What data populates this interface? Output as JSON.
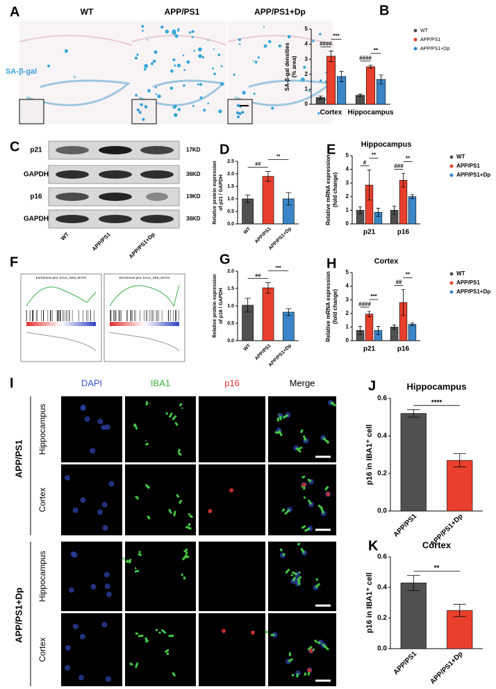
{
  "figure": {
    "panel_labels": [
      "A",
      "B",
      "C",
      "D",
      "E",
      "F",
      "G",
      "H",
      "I",
      "J",
      "K"
    ],
    "panel_a": {
      "columns": [
        "WT",
        "APP/PS1",
        "APP/PS1+Dp"
      ],
      "stain": "SA-β-gal"
    },
    "panel_c": {
      "rows": [
        "p21",
        "GAPDH",
        "p16",
        "GAPDH"
      ],
      "sizes": [
        "17KD",
        "36KD",
        "19KD",
        "36KD"
      ],
      "lanes": [
        "WT",
        "APP/PS1",
        "APP/PS1+Dp"
      ]
    },
    "panel_f": {
      "plot_titles": [
        "Enrichment plot: SAUL_SEN_MAYO",
        "Enrichment plot: SAUL_SEN_MAYO"
      ]
    },
    "panel_i": {
      "columns": [
        "DAPI",
        "IBA1",
        "p16",
        "Merge"
      ],
      "groups": [
        {
          "name": "APP/PS1",
          "rows": [
            "Hippocampus",
            "Cortex"
          ]
        },
        {
          "name": "APP/PS1+Dp",
          "rows": [
            "Hippocampus",
            "Cortex"
          ]
        }
      ]
    }
  },
  "chart_data": [
    {
      "type": "bar",
      "y_label": [
        "SA-β-gal densities",
        "(% area)"
      ],
      "categories": [
        "Cortex",
        "Hippocampus"
      ],
      "series": [
        {
          "name": "WT",
          "color": "#505050",
          "values": [
            0.45,
            0.6
          ],
          "errors": [
            0.1,
            0.08
          ]
        },
        {
          "name": "APP/PS1",
          "color": "#e8402c",
          "values": [
            3.2,
            2.5
          ],
          "errors": [
            0.35,
            0.1
          ]
        },
        {
          "name": "APP/PS1+Dp",
          "color": "#3b86c8",
          "values": [
            1.85,
            1.65
          ],
          "errors": [
            0.35,
            0.3
          ]
        }
      ],
      "ylim": [
        0,
        5
      ],
      "yticks": [
        0,
        1,
        2,
        3,
        4,
        5
      ],
      "annotations": [
        "####",
        "***",
        "####",
        "**"
      ]
    },
    {
      "type": "bar",
      "y_label": [
        "Relative protein expression",
        "of p21 / GAPDH"
      ],
      "categories": [
        "WT",
        "APP/PS1",
        "APP/PS1+Dp"
      ],
      "values": [
        1.0,
        1.9,
        1.0
      ],
      "errors": [
        0.15,
        0.2,
        0.25
      ],
      "colors": [
        "#505050",
        "#e8402c",
        "#3b86c8"
      ],
      "ylim": [
        0,
        2.5
      ],
      "yticks": [
        {
          "value": 0,
          "label": "0.0"
        },
        0.5,
        {
          "value": 1,
          "label": "1.0"
        },
        1.5,
        {
          "value": 2,
          "label": "2.0"
        },
        2.5
      ],
      "annotations": [
        "##",
        "**"
      ]
    },
    {
      "type": "bar",
      "title": "Hippocampus",
      "y_label": [
        "Relative mRNA expression",
        "(fold change)"
      ],
      "categories": [
        "p21",
        "p16"
      ],
      "series": [
        {
          "name": "WT",
          "color": "#505050",
          "values": [
            1.0,
            1.0
          ],
          "errors": [
            0.25,
            0.3
          ]
        },
        {
          "name": "APP/PS1",
          "color": "#e8402c",
          "values": [
            2.85,
            3.2
          ],
          "errors": [
            1.1,
            0.5
          ]
        },
        {
          "name": "APP/PS1+Dp",
          "color": "#3b86c8",
          "values": [
            0.85,
            2.0
          ],
          "errors": [
            0.3,
            0.15
          ]
        }
      ],
      "ylim": [
        0,
        5
      ],
      "yticks": [
        0,
        1,
        2,
        3,
        4,
        5
      ],
      "annotations": [
        "#",
        "**",
        "###",
        "**"
      ]
    },
    {
      "type": "bar",
      "y_label": [
        "Relative protein expression",
        "of p16 / GAPDH"
      ],
      "categories": [
        "WT",
        "APP/PS1",
        "APP/PS1+Dp"
      ],
      "values": [
        1.02,
        1.52,
        0.82
      ],
      "errors": [
        0.2,
        0.15,
        0.1
      ],
      "colors": [
        "#505050",
        "#e8402c",
        "#3b86c8"
      ],
      "ylim": [
        0,
        2.0
      ],
      "yticks": [
        {
          "value": 0,
          "label": "0.0"
        },
        0.5,
        {
          "value": 1,
          "label": "1.0"
        },
        1.5,
        {
          "value": 2,
          "label": "2.0"
        }
      ],
      "annotations": [
        "##",
        "***"
      ]
    },
    {
      "type": "bar",
      "title": "Cortex",
      "y_label": [
        "Relative mRNA expression",
        "(fold change)"
      ],
      "categories": [
        "p21",
        "p16"
      ],
      "series": [
        {
          "name": "WT",
          "color": "#505050",
          "values": [
            0.75,
            1.0
          ],
          "errors": [
            0.3,
            0.15
          ]
        },
        {
          "name": "APP/PS1",
          "color": "#e8402c",
          "values": [
            1.95,
            2.8
          ],
          "errors": [
            0.2,
            0.95
          ]
        },
        {
          "name": "APP/PS1+Dp",
          "color": "#3b86c8",
          "values": [
            0.75,
            1.2
          ],
          "errors": [
            0.3,
            0.1
          ]
        }
      ],
      "ylim": [
        0,
        5
      ],
      "yticks": [
        0,
        1,
        2,
        3,
        4,
        5
      ],
      "annotations": [
        "####",
        "***",
        "##",
        "**"
      ]
    },
    {
      "type": "bar",
      "title": "Hippocampus",
      "y_label": [
        "p16 in IBA1⁺ cell"
      ],
      "categories": [
        "APP/PS1",
        "APP/PS1+Dp"
      ],
      "values": [
        0.52,
        0.27
      ],
      "errors": [
        0.02,
        0.035
      ],
      "colors": [
        "#505050",
        "#e8402c"
      ],
      "ylim": [
        0,
        0.6
      ],
      "yticks": [
        {
          "value": 0,
          "label": "0.0"
        },
        0.2,
        0.4,
        0.6
      ],
      "annotations": [
        "****"
      ]
    },
    {
      "type": "bar",
      "title": "Cortex",
      "y_label": [
        "p16 in IBA1⁺ cell"
      ],
      "categories": [
        "APP/PS1",
        "APP/PS1+Dp"
      ],
      "values": [
        0.43,
        0.25
      ],
      "errors": [
        0.05,
        0.04
      ],
      "colors": [
        "#505050",
        "#e8402c"
      ],
      "ylim": [
        0,
        0.6
      ],
      "yticks": [
        {
          "value": 0,
          "label": "0.0"
        },
        0.2,
        0.4,
        0.6
      ],
      "annotations": [
        "**"
      ]
    }
  ]
}
